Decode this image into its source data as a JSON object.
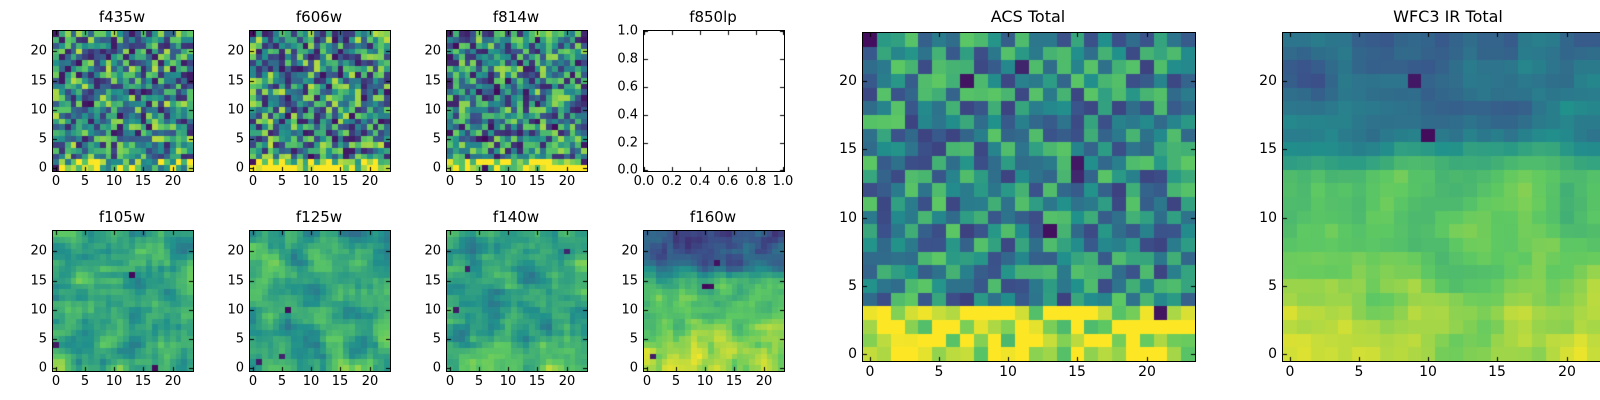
{
  "figure": {
    "background": "#ffffff",
    "colormap": "viridis"
  },
  "chart_data": [
    {
      "id": "f435w",
      "type": "heatmap",
      "title": "f435w",
      "n": 24,
      "colormap": "viridis",
      "xticks": [
        0,
        5,
        10,
        15,
        20
      ],
      "xtick_labels": [
        "0",
        "5",
        "10",
        "15",
        "20"
      ],
      "yticks": [
        0,
        5,
        10,
        15,
        20
      ],
      "ytick_labels": [
        "0",
        "5",
        "10",
        "15",
        "20"
      ],
      "gen": {
        "seed": 101,
        "base": 0.48,
        "noise": 0.85,
        "grad": 0,
        "band_rows": 2,
        "band_boost": 0.3,
        "top_dark_rows": 0,
        "top_dark_boost": 0,
        "smooth": 0,
        "spots": 6
      }
    },
    {
      "id": "f606w",
      "type": "heatmap",
      "title": "f606w",
      "n": 24,
      "colormap": "viridis",
      "xticks": [
        0,
        5,
        10,
        15,
        20
      ],
      "xtick_labels": [
        "0",
        "5",
        "10",
        "15",
        "20"
      ],
      "yticks": [
        0,
        5,
        10,
        15,
        20
      ],
      "ytick_labels": [
        "0",
        "5",
        "10",
        "15",
        "20"
      ],
      "gen": {
        "seed": 102,
        "base": 0.48,
        "noise": 0.85,
        "grad": 0,
        "band_rows": 2,
        "band_boost": 0.42,
        "top_dark_rows": 0,
        "top_dark_boost": 0,
        "smooth": 0,
        "spots": 8
      }
    },
    {
      "id": "f814w",
      "type": "heatmap",
      "title": "f814w",
      "n": 24,
      "colormap": "viridis",
      "xticks": [
        0,
        5,
        10,
        15,
        20
      ],
      "xtick_labels": [
        "0",
        "5",
        "10",
        "15",
        "20"
      ],
      "yticks": [
        0,
        5,
        10,
        15,
        20
      ],
      "ytick_labels": [
        "0",
        "5",
        "10",
        "15",
        "20"
      ],
      "gen": {
        "seed": 103,
        "base": 0.46,
        "noise": 0.8,
        "grad": 0,
        "band_rows": 2,
        "band_boost": 0.55,
        "top_dark_rows": 0,
        "top_dark_boost": 0,
        "smooth": 0,
        "spots": 8
      }
    },
    {
      "id": "f850lp",
      "type": "empty",
      "title": "f850lp",
      "xlim": [
        0,
        1
      ],
      "ylim": [
        0,
        1
      ],
      "xticks": [
        0,
        0.2,
        0.4,
        0.6,
        0.8,
        1.0
      ],
      "xtick_labels": [
        "0.0",
        "0.2",
        "0.4",
        "0.6",
        "0.8",
        "1.0"
      ],
      "yticks": [
        0,
        0.2,
        0.4,
        0.6,
        0.8,
        1.0
      ],
      "ytick_labels": [
        "0.0",
        "0.2",
        "0.4",
        "0.6",
        "0.8",
        "1.0"
      ]
    },
    {
      "id": "f105w",
      "type": "heatmap",
      "title": "f105w",
      "n": 24,
      "colormap": "viridis",
      "xticks": [
        0,
        5,
        10,
        15,
        20
      ],
      "xtick_labels": [
        "0",
        "5",
        "10",
        "15",
        "20"
      ],
      "yticks": [
        0,
        5,
        10,
        15,
        20
      ],
      "ytick_labels": [
        "0",
        "5",
        "10",
        "15",
        "20"
      ],
      "gen": {
        "seed": 104,
        "base": 0.6,
        "noise": 0.75,
        "grad": 0,
        "band_rows": 0,
        "band_boost": 0,
        "top_dark_rows": 0,
        "top_dark_boost": 0,
        "smooth": 1,
        "spots": 3
      }
    },
    {
      "id": "f125w",
      "type": "heatmap",
      "title": "f125w",
      "n": 24,
      "colormap": "viridis",
      "xticks": [
        0,
        5,
        10,
        15,
        20
      ],
      "xtick_labels": [
        "0",
        "5",
        "10",
        "15",
        "20"
      ],
      "yticks": [
        0,
        5,
        10,
        15,
        20
      ],
      "ytick_labels": [
        "0",
        "5",
        "10",
        "15",
        "20"
      ],
      "gen": {
        "seed": 105,
        "base": 0.6,
        "noise": 0.75,
        "grad": 0,
        "band_rows": 0,
        "band_boost": 0,
        "top_dark_rows": 2,
        "top_dark_boost": -0.2,
        "smooth": 1,
        "spots": 4
      }
    },
    {
      "id": "f140w",
      "type": "heatmap",
      "title": "f140w",
      "n": 24,
      "colormap": "viridis",
      "xticks": [
        0,
        5,
        10,
        15,
        20
      ],
      "xtick_labels": [
        "0",
        "5",
        "10",
        "15",
        "20"
      ],
      "yticks": [
        0,
        5,
        10,
        15,
        20
      ],
      "ytick_labels": [
        "0",
        "5",
        "10",
        "15",
        "20"
      ],
      "gen": {
        "seed": 106,
        "base": 0.56,
        "noise": 0.75,
        "grad": 0,
        "band_rows": 4,
        "band_boost": 0.18,
        "top_dark_rows": 0,
        "top_dark_boost": 0,
        "smooth": 1,
        "spots": 3
      }
    },
    {
      "id": "f160w",
      "type": "heatmap",
      "title": "f160w",
      "n": 24,
      "colormap": "viridis",
      "xticks": [
        0,
        5,
        10,
        15,
        20
      ],
      "xtick_labels": [
        "0",
        "5",
        "10",
        "15",
        "20"
      ],
      "yticks": [
        0,
        5,
        10,
        15,
        20
      ],
      "ytick_labels": [
        "0",
        "5",
        "10",
        "15",
        "20"
      ],
      "gen": {
        "seed": 107,
        "base": 0.5,
        "noise": 0.55,
        "grad": 0.38,
        "band_rows": 0,
        "band_boost": 0,
        "top_dark_rows": 7,
        "top_dark_boost": -0.38,
        "smooth": 1,
        "spots": 4
      }
    },
    {
      "id": "acs-total",
      "type": "heatmap",
      "title": "ACS Total",
      "n": 24,
      "colormap": "viridis",
      "xticks": [
        0,
        5,
        10,
        15,
        20
      ],
      "xtick_labels": [
        "0",
        "5",
        "10",
        "15",
        "20"
      ],
      "yticks": [
        0,
        5,
        10,
        15,
        20
      ],
      "ytick_labels": [
        "0",
        "5",
        "10",
        "15",
        "20"
      ],
      "gen": {
        "seed": 108,
        "base": 0.47,
        "noise": 0.55,
        "grad": 0,
        "band_rows": 4,
        "band_boost": 0.48,
        "top_dark_rows": 0,
        "top_dark_boost": 0,
        "smooth": 0,
        "spots": 7
      }
    },
    {
      "id": "wfc3-ir-total",
      "type": "heatmap",
      "title": "WFC3 IR Total",
      "n": 24,
      "colormap": "viridis",
      "xticks": [
        0,
        5,
        10,
        15,
        20
      ],
      "xtick_labels": [
        "0",
        "5",
        "10",
        "15",
        "20"
      ],
      "yticks": [
        0,
        5,
        10,
        15,
        20
      ],
      "ytick_labels": [
        "0",
        "5",
        "10",
        "15",
        "20"
      ],
      "gen": {
        "seed": 109,
        "base": 0.5,
        "noise": 0.42,
        "grad": 0.4,
        "band_rows": 0,
        "band_boost": 0,
        "top_dark_rows": 9,
        "top_dark_boost": -0.32,
        "smooth": 1,
        "spots": 2
      }
    }
  ]
}
